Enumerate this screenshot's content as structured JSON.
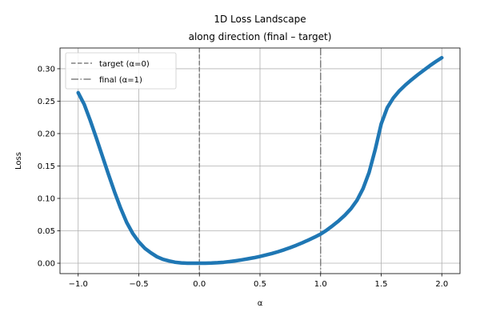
{
  "chart_data": {
    "type": "line",
    "title": "1D Loss Landscape",
    "subtitle": "along direction (final – target)",
    "xlabel": "α",
    "ylabel": "Loss",
    "xlim": [
      -1.15,
      2.15
    ],
    "ylim": [
      -0.016,
      0.332
    ],
    "xticks": [
      -1.0,
      -0.5,
      0.0,
      0.5,
      1.0,
      1.5,
      2.0
    ],
    "xtick_labels": [
      "−1.0",
      "−0.5",
      "0.0",
      "0.5",
      "1.0",
      "1.5",
      "2.0"
    ],
    "yticks": [
      0.0,
      0.05,
      0.1,
      0.15,
      0.2,
      0.25,
      0.3
    ],
    "ytick_labels": [
      "0.00",
      "0.05",
      "0.10",
      "0.15",
      "0.20",
      "0.25",
      "0.30"
    ],
    "grid": true,
    "legend_position": "top-left",
    "series": [
      {
        "color": "#1f77b4",
        "x": [
          -1.0,
          -0.95,
          -0.9,
          -0.85,
          -0.8,
          -0.75,
          -0.7,
          -0.65,
          -0.6,
          -0.55,
          -0.5,
          -0.45,
          -0.4,
          -0.35,
          -0.3,
          -0.25,
          -0.2,
          -0.15,
          -0.1,
          -0.05,
          0.0,
          0.05,
          0.1,
          0.15,
          0.2,
          0.25,
          0.3,
          0.35,
          0.4,
          0.45,
          0.5,
          0.55,
          0.6,
          0.65,
          0.7,
          0.75,
          0.8,
          0.85,
          0.9,
          0.95,
          1.0,
          1.05,
          1.1,
          1.15,
          1.2,
          1.25,
          1.3,
          1.35,
          1.4,
          1.45,
          1.5,
          1.55,
          1.6,
          1.65,
          1.7,
          1.75,
          1.8,
          1.85,
          1.9,
          1.95,
          2.0
        ],
        "y": [
          0.263,
          0.245,
          0.22,
          0.193,
          0.165,
          0.137,
          0.11,
          0.085,
          0.063,
          0.046,
          0.033,
          0.023,
          0.016,
          0.01,
          0.006,
          0.0035,
          0.0015,
          0.0005,
          0.0001,
          0.0,
          0.0,
          0.0001,
          0.0003,
          0.0008,
          0.0015,
          0.0025,
          0.0038,
          0.0052,
          0.0068,
          0.0085,
          0.0105,
          0.0127,
          0.0151,
          0.0178,
          0.0208,
          0.0241,
          0.0277,
          0.0316,
          0.0358,
          0.0402,
          0.045,
          0.051,
          0.058,
          0.0655,
          0.074,
          0.084,
          0.097,
          0.115,
          0.14,
          0.175,
          0.215,
          0.24,
          0.255,
          0.266,
          0.275,
          0.283,
          0.2905,
          0.2975,
          0.3045,
          0.311,
          0.317
        ]
      }
    ],
    "vlines": [
      {
        "x": 0.0,
        "label": "target (α=0)",
        "style": "dashed",
        "color": "#808080"
      },
      {
        "x": 1.0,
        "label": "final  (α=1)",
        "style": "dashdot",
        "color": "#808080"
      }
    ]
  }
}
